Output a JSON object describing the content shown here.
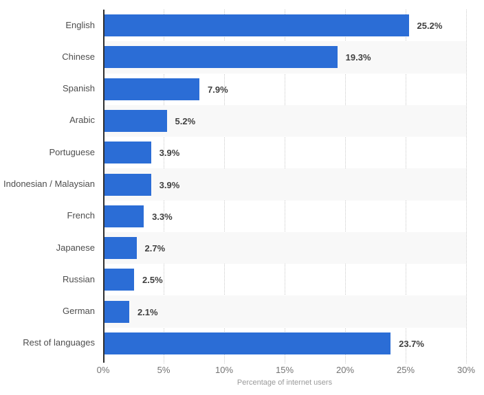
{
  "chart_data": {
    "type": "bar",
    "orientation": "horizontal",
    "categories": [
      "English",
      "Chinese",
      "Spanish",
      "Arabic",
      "Portuguese",
      "Indonesian / Malaysian",
      "French",
      "Japanese",
      "Russian",
      "German",
      "Rest of languages"
    ],
    "values": [
      25.2,
      19.3,
      7.9,
      5.2,
      3.9,
      3.9,
      3.3,
      2.7,
      2.5,
      2.1,
      23.7
    ],
    "value_labels": [
      "25.2%",
      "19.3%",
      "7.9%",
      "5.2%",
      "3.9%",
      "3.9%",
      "3.3%",
      "2.7%",
      "2.5%",
      "2.1%",
      "23.7%"
    ],
    "title": "",
    "xlabel": "Percentage of internet users",
    "ylabel": "",
    "xlim": [
      0,
      30
    ],
    "x_ticks": [
      "0%",
      "5%",
      "10%",
      "15%",
      "20%",
      "25%",
      "30%"
    ],
    "x_tick_values": [
      0,
      5,
      10,
      15,
      20,
      25,
      30
    ],
    "grid": "vertical-dotted",
    "legend": "none",
    "row_striping": "alternate-even-rows-shaded",
    "colors": {
      "bar": "#2b6dd6",
      "band": "#f8f8f8",
      "gridline": "#c9c9c9",
      "axis_line": "#2e2e2e",
      "category_label": "#4d4d4d",
      "value_label": "#404040",
      "tick_label": "#737373",
      "axis_title": "#999999",
      "background": "#ffffff"
    }
  }
}
